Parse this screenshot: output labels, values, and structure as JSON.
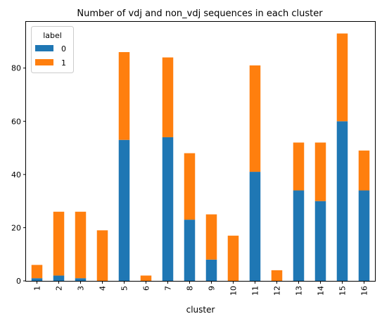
{
  "chart_data": {
    "type": "bar",
    "stacked": true,
    "title": "Number of vdj and non_vdj sequences in each cluster",
    "xlabel": "cluster",
    "ylabel": "",
    "categories": [
      "1",
      "2",
      "3",
      "4",
      "5",
      "6",
      "7",
      "8",
      "9",
      "10",
      "11",
      "12",
      "13",
      "14",
      "15",
      "16"
    ],
    "series": [
      {
        "name": "0",
        "color": "#1f77b4",
        "values": [
          1,
          2,
          1,
          0,
          53,
          0,
          54,
          23,
          8,
          0,
          41,
          0,
          34,
          30,
          60,
          34
        ]
      },
      {
        "name": "1",
        "color": "#ff7f0e",
        "values": [
          5,
          24,
          25,
          19,
          33,
          2,
          30,
          25,
          17,
          17,
          40,
          4,
          18,
          22,
          33,
          15
        ]
      }
    ],
    "ylim": [
      0,
      97.65
    ],
    "yticks": [
      0,
      20,
      40,
      60,
      80
    ],
    "legend": {
      "title": "label",
      "placement": "top-left"
    },
    "grid": false
  }
}
